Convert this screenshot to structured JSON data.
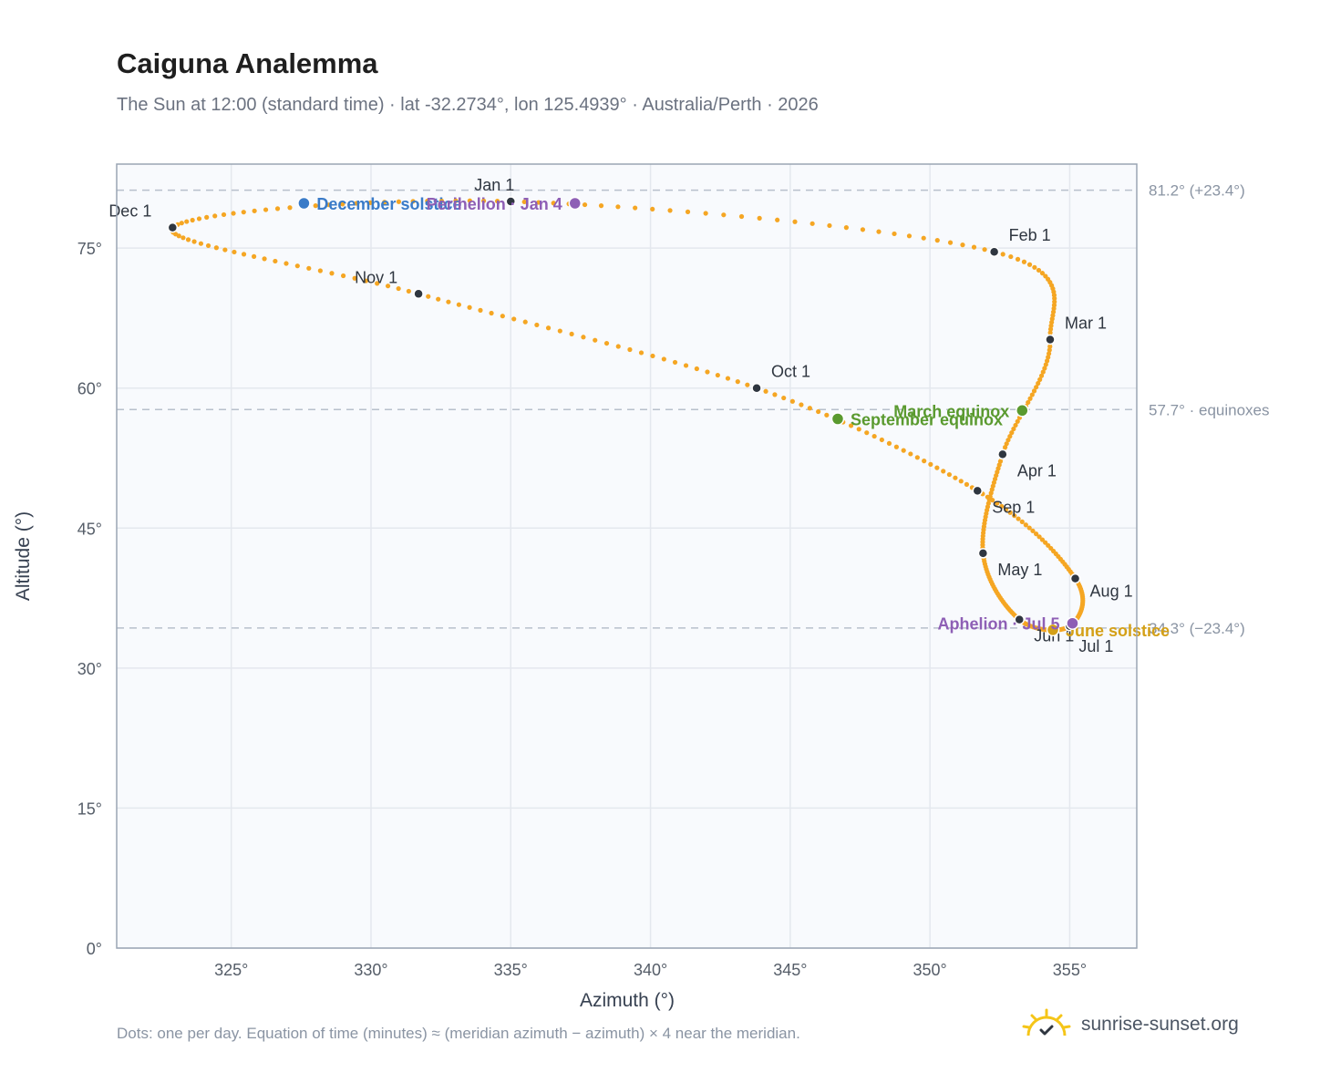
{
  "title": "Caiguna Analemma",
  "subtitle": "The Sun at 12:00 (standard time) · lat -32.2734°, lon 125.4939° · Australia/Perth · 2026",
  "footnote": "Dots: one per day. Equation of time (minutes) ≈ (meridian azimuth − azimuth) × 4 near the meridian.",
  "brand": "sunrise-sunset.org",
  "colors": {
    "curve": "#f5a623",
    "month_marker": "#2f3640",
    "march_equinox": "#5a9a2f",
    "september_equinox": "#5a9a2f",
    "june_solstice": "#d4a017",
    "december_solstice": "#3a7bc8",
    "perihelion": "#8e5fb5",
    "aphelion": "#8e5fb5",
    "reference_line": "#b8c0cc",
    "plot_background": "#f8fafd",
    "grid": "#e4e8ee",
    "frame": "#9aa5b4",
    "brand_icon": "#f5c518"
  },
  "chart_data": {
    "type": "scatter",
    "xlabel": "Azimuth (°)",
    "ylabel": "Altitude (°)",
    "xlim": [
      320.9,
      357.4
    ],
    "ylim": [
      0,
      84
    ],
    "x_ticks": [
      325,
      330,
      335,
      340,
      345,
      350,
      355
    ],
    "x_tick_labels": [
      "325°",
      "330°",
      "335°",
      "340°",
      "345°",
      "350°",
      "355°"
    ],
    "y_ticks": [
      0,
      15,
      30,
      45,
      60,
      75
    ],
    "y_tick_labels": [
      "0°",
      "15°",
      "30°",
      "45°",
      "60°",
      "75°"
    ],
    "grid": true,
    "daily_positions": {
      "description": "one dot per day",
      "path_through_months": [
        {
          "label": "Jan 1",
          "az": 335.0,
          "alt": 80.0
        },
        {
          "label": "Feb 1",
          "az": 352.3,
          "alt": 74.6
        },
        {
          "label": "Mar 1",
          "az": 354.3,
          "alt": 65.2
        },
        {
          "label": "Apr 1",
          "az": 352.6,
          "alt": 52.9
        },
        {
          "label": "May 1",
          "az": 351.9,
          "alt": 42.3
        },
        {
          "label": "Jun 1",
          "az": 353.2,
          "alt": 35.2
        },
        {
          "label": "Jul 1",
          "az": 355.0,
          "alt": 34.5
        },
        {
          "label": "Aug 1",
          "az": 355.2,
          "alt": 39.6
        },
        {
          "label": "Sep 1",
          "az": 351.7,
          "alt": 49.0
        },
        {
          "label": "Oct 1",
          "az": 343.8,
          "alt": 60.0
        },
        {
          "label": "Nov 1",
          "az": 331.7,
          "alt": 70.1
        },
        {
          "label": "Dec 1",
          "az": 322.9,
          "alt": 77.2
        }
      ]
    },
    "reference_lines": [
      {
        "alt": 81.2,
        "label": "81.2° (+23.4°)"
      },
      {
        "alt": 57.7,
        "label": "57.7° · equinoxes"
      },
      {
        "alt": 34.3,
        "label": "34.3° (−23.4°)"
      }
    ],
    "events": [
      {
        "label": "December solstice",
        "az": 327.6,
        "alt": 79.8,
        "color_key": "december_solstice",
        "label_side": "right"
      },
      {
        "label": "Perihelion · Jan 4",
        "az": 337.3,
        "alt": 79.8,
        "color_key": "perihelion",
        "label_side": "left"
      },
      {
        "label": "March equinox",
        "az": 353.3,
        "alt": 57.6,
        "color_key": "march_equinox",
        "label_side": "left"
      },
      {
        "label": "September equinox",
        "az": 346.7,
        "alt": 56.7,
        "color_key": "september_equinox",
        "label_side": "right"
      },
      {
        "label": "June solstice",
        "az": 354.4,
        "alt": 34.1,
        "color_key": "june_solstice",
        "label_side": "right"
      },
      {
        "label": "Aphelion · Jul 5",
        "az": 355.1,
        "alt": 34.8,
        "color_key": "aphelion",
        "label_side": "left"
      }
    ]
  }
}
